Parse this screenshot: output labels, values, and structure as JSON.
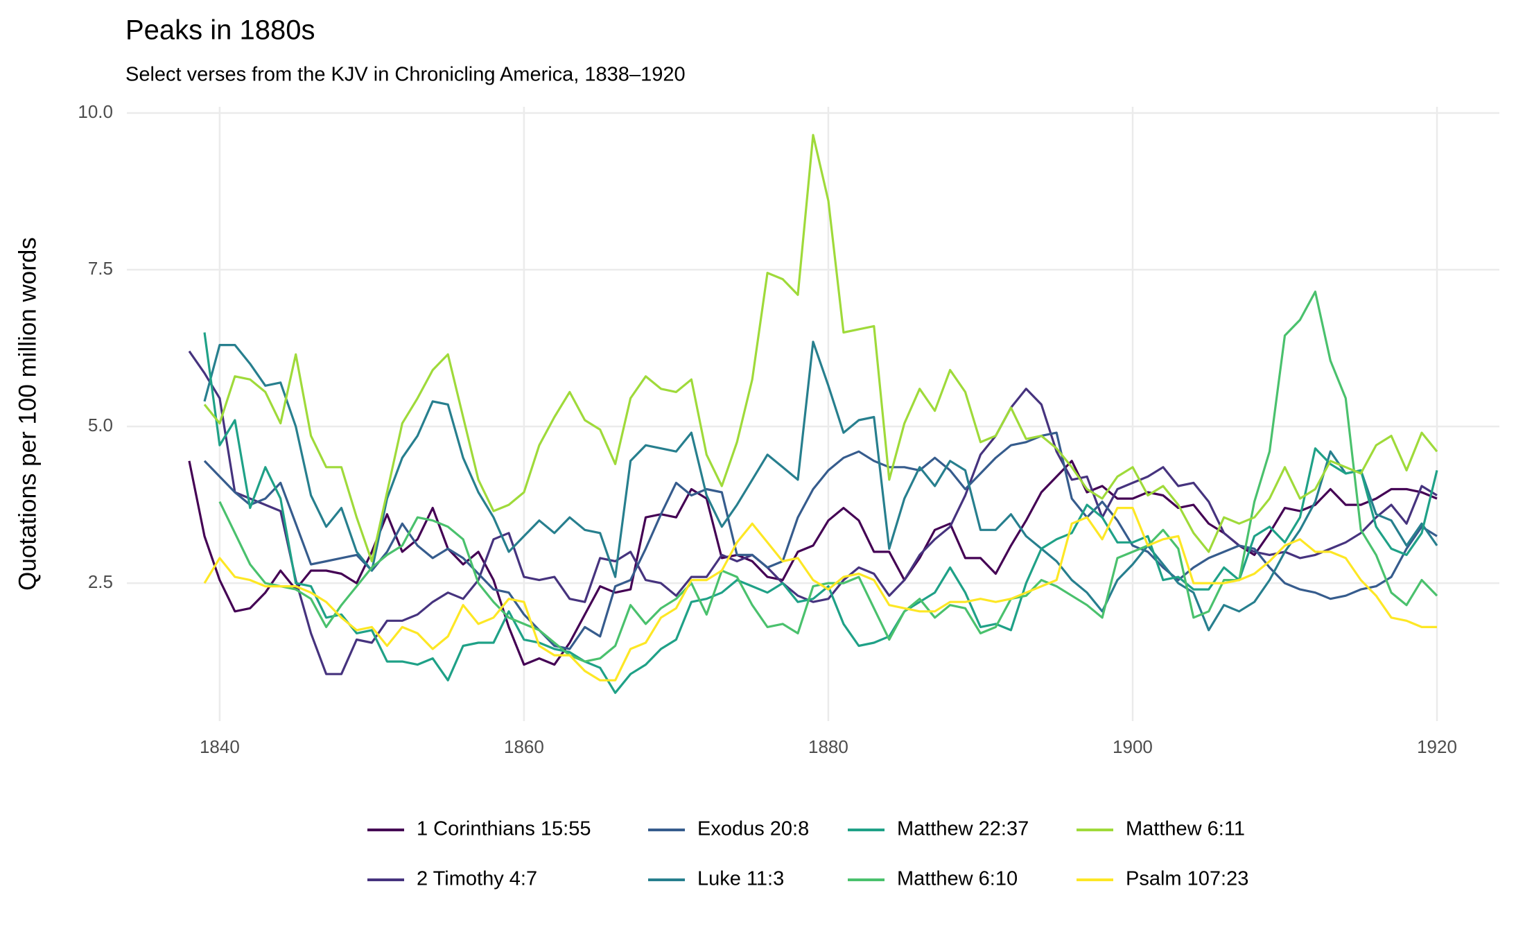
{
  "chart_data": {
    "type": "line",
    "title": "Peaks in 1880s",
    "subtitle": "Select verses from the KJV in Chronicling America, 1838–1920",
    "y_label": "Quotations per 100 million words",
    "x": [
      1838,
      1839,
      1840,
      1841,
      1842,
      1843,
      1844,
      1845,
      1846,
      1847,
      1848,
      1849,
      1850,
      1851,
      1852,
      1853,
      1854,
      1855,
      1856,
      1857,
      1858,
      1859,
      1860,
      1861,
      1862,
      1863,
      1864,
      1865,
      1866,
      1867,
      1868,
      1869,
      1870,
      1871,
      1872,
      1873,
      1874,
      1875,
      1876,
      1877,
      1878,
      1879,
      1880,
      1881,
      1882,
      1883,
      1884,
      1885,
      1886,
      1887,
      1888,
      1889,
      1890,
      1891,
      1892,
      1893,
      1894,
      1895,
      1896,
      1897,
      1898,
      1899,
      1900,
      1901,
      1902,
      1903,
      1904,
      1905,
      1906,
      1907,
      1908,
      1909,
      1910,
      1911,
      1912,
      1913,
      1914,
      1915,
      1916,
      1917,
      1918,
      1919,
      1920
    ],
    "xlim": [
      1833.9,
      1924.1
    ],
    "xticks": [
      1840,
      1860,
      1880,
      1900,
      1920
    ],
    "ylim": [
      0.3,
      10.1
    ],
    "yticks": [
      {
        "value": 2.5,
        "label": "2.5"
      },
      {
        "value": 5,
        "label": "5.0"
      },
      {
        "value": 7.5,
        "label": "7.5"
      },
      {
        "value": 10,
        "label": "10.0"
      }
    ],
    "grid": true,
    "legend": "bottom",
    "series": [
      {
        "name": "1 Corinthians 15:55",
        "color": "#440154",
        "values": [
          4.45,
          3.25,
          2.55,
          2.05,
          2.1,
          2.35,
          2.7,
          2.4,
          2.7,
          2.7,
          2.65,
          2.5,
          3.0,
          3.6,
          3.0,
          3.2,
          3.7,
          3.05,
          2.8,
          3.0,
          2.55,
          1.8,
          1.2,
          1.3,
          1.2,
          1.55,
          2.0,
          2.45,
          2.35,
          2.4,
          3.55,
          3.6,
          3.55,
          4.0,
          3.85,
          2.9,
          2.95,
          2.85,
          2.6,
          2.55,
          3.0,
          3.1,
          3.5,
          3.7,
          3.5,
          3.0,
          3.0,
          2.55,
          2.9,
          3.35,
          3.45,
          2.9,
          2.9,
          2.65,
          3.1,
          3.5,
          3.95,
          4.2,
          4.45,
          3.95,
          4.05,
          3.85,
          3.85,
          3.95,
          3.9,
          3.7,
          3.75,
          3.45,
          3.3,
          3.1,
          2.95,
          3.3,
          3.7,
          3.65,
          3.75,
          4.0,
          3.75,
          3.75,
          3.85,
          4.0,
          4.0,
          3.95,
          3.85
        ]
      },
      {
        "name": "2 Timothy 4:7",
        "color": "#46337E",
        "values": [
          6.2,
          5.85,
          5.45,
          3.95,
          3.85,
          3.75,
          3.65,
          2.55,
          1.7,
          1.05,
          1.05,
          1.6,
          1.55,
          1.9,
          1.9,
          2.0,
          2.2,
          2.35,
          2.25,
          2.55,
          3.2,
          3.3,
          2.6,
          2.55,
          2.6,
          2.25,
          2.2,
          2.9,
          2.85,
          3.0,
          2.55,
          2.5,
          2.3,
          2.6,
          2.6,
          2.95,
          2.85,
          2.95,
          2.75,
          2.5,
          2.3,
          2.2,
          2.25,
          2.55,
          2.75,
          2.65,
          2.3,
          2.55,
          2.95,
          3.2,
          3.4,
          3.9,
          4.55,
          4.85,
          5.3,
          5.6,
          5.35,
          4.6,
          4.15,
          4.2,
          3.55,
          4.0,
          4.1,
          4.2,
          4.35,
          4.05,
          4.1,
          3.8,
          3.3,
          3.1,
          3.0,
          2.95,
          3.0,
          2.9,
          2.95,
          3.05,
          3.15,
          3.3,
          3.55,
          3.75,
          3.45,
          4.05,
          3.9
        ]
      },
      {
        "name": "Exodus 20:8",
        "color": "#365C8D",
        "values": [
          null,
          4.45,
          4.2,
          3.95,
          3.75,
          3.85,
          4.1,
          3.45,
          2.8,
          2.85,
          2.9,
          2.95,
          2.7,
          3.0,
          3.45,
          3.1,
          2.9,
          3.05,
          2.9,
          2.65,
          2.4,
          2.35,
          2.0,
          1.75,
          1.5,
          1.45,
          1.8,
          1.65,
          2.45,
          2.55,
          3.05,
          3.6,
          4.1,
          3.9,
          4.0,
          3.95,
          2.95,
          2.95,
          2.75,
          2.85,
          3.55,
          4.0,
          4.3,
          4.5,
          4.6,
          4.45,
          4.35,
          4.35,
          4.3,
          4.5,
          4.3,
          4.0,
          4.25,
          4.5,
          4.7,
          4.75,
          4.85,
          4.9,
          3.85,
          3.55,
          3.8,
          3.5,
          3.1,
          3.0,
          2.75,
          2.55,
          2.75,
          2.9,
          3.0,
          3.1,
          3.05,
          2.75,
          2.5,
          2.4,
          2.35,
          2.25,
          2.3,
          2.4,
          2.45,
          2.6,
          3.05,
          3.4,
          3.25
        ]
      },
      {
        "name": "Luke 11:3",
        "color": "#277F8E",
        "values": [
          null,
          5.4,
          6.3,
          6.3,
          6.0,
          5.65,
          5.7,
          5.0,
          3.9,
          3.4,
          3.7,
          3.0,
          2.7,
          3.85,
          4.5,
          4.85,
          5.4,
          5.35,
          4.5,
          3.95,
          3.55,
          3.0,
          3.25,
          3.5,
          3.3,
          3.55,
          3.35,
          3.3,
          2.6,
          4.45,
          4.7,
          4.65,
          4.6,
          4.9,
          3.9,
          3.4,
          3.75,
          4.15,
          4.55,
          4.35,
          4.15,
          6.35,
          5.65,
          4.9,
          5.1,
          5.15,
          3.05,
          3.85,
          4.35,
          4.05,
          4.45,
          4.3,
          3.35,
          3.35,
          3.6,
          3.25,
          3.05,
          2.85,
          2.55,
          2.35,
          2.05,
          2.55,
          2.8,
          3.1,
          2.8,
          2.5,
          2.35,
          1.75,
          2.15,
          2.05,
          2.2,
          2.55,
          3.0,
          3.35,
          3.8,
          4.6,
          4.25,
          4.3,
          3.6,
          3.5,
          3.1,
          3.45,
          3.1
        ]
      },
      {
        "name": "Matthew 22:37",
        "color": "#1FA187",
        "values": [
          null,
          6.5,
          4.7,
          5.1,
          3.7,
          4.35,
          3.85,
          2.5,
          2.45,
          1.95,
          2.0,
          1.7,
          1.75,
          1.25,
          1.25,
          1.2,
          1.3,
          0.95,
          1.5,
          1.55,
          1.55,
          2.05,
          1.6,
          1.55,
          1.45,
          1.4,
          1.25,
          1.15,
          0.75,
          1.05,
          1.2,
          1.45,
          1.6,
          2.2,
          2.25,
          2.35,
          2.55,
          2.45,
          2.35,
          2.5,
          2.2,
          2.25,
          2.45,
          1.85,
          1.5,
          1.55,
          1.65,
          2.05,
          2.2,
          2.35,
          2.75,
          2.35,
          1.8,
          1.85,
          1.75,
          2.5,
          3.05,
          3.2,
          3.3,
          3.75,
          3.55,
          3.15,
          3.15,
          3.25,
          2.55,
          2.6,
          2.4,
          2.4,
          2.75,
          2.55,
          3.25,
          3.4,
          3.15,
          3.55,
          4.65,
          4.4,
          4.25,
          4.3,
          3.4,
          3.05,
          2.95,
          3.3,
          4.3
        ]
      },
      {
        "name": "Matthew 6:10",
        "color": "#4AC16D",
        "values": [
          null,
          null,
          3.8,
          3.3,
          2.8,
          2.5,
          2.45,
          2.4,
          2.25,
          1.8,
          2.15,
          2.45,
          2.75,
          2.95,
          3.1,
          3.55,
          3.5,
          3.4,
          3.2,
          2.5,
          2.2,
          1.95,
          1.85,
          1.75,
          1.55,
          1.35,
          1.25,
          1.3,
          1.5,
          2.15,
          1.85,
          2.1,
          2.25,
          2.5,
          2.0,
          2.7,
          2.6,
          2.15,
          1.8,
          1.85,
          1.7,
          2.45,
          2.5,
          2.5,
          2.6,
          2.1,
          1.6,
          2.05,
          2.25,
          1.95,
          2.15,
          2.1,
          1.7,
          1.8,
          2.25,
          2.3,
          2.55,
          2.45,
          2.3,
          2.15,
          1.95,
          2.9,
          3.0,
          3.1,
          3.35,
          3.05,
          1.95,
          2.05,
          2.55,
          2.55,
          3.8,
          4.6,
          6.45,
          6.7,
          7.15,
          6.05,
          5.45,
          3.35,
          2.95,
          2.35,
          2.15,
          2.55,
          2.3
        ]
      },
      {
        "name": "Matthew 6:11",
        "color": "#9FDA3A",
        "values": [
          null,
          5.35,
          5.05,
          5.8,
          5.75,
          5.55,
          5.05,
          6.15,
          4.85,
          4.35,
          4.35,
          3.55,
          2.85,
          3.95,
          5.05,
          5.45,
          5.9,
          6.15,
          5.15,
          4.15,
          3.65,
          3.75,
          3.95,
          4.7,
          5.15,
          5.55,
          5.1,
          4.95,
          4.4,
          5.45,
          5.8,
          5.6,
          5.55,
          5.75,
          4.55,
          4.05,
          4.75,
          5.75,
          7.45,
          7.35,
          7.1,
          9.65,
          8.6,
          6.5,
          6.55,
          6.6,
          4.15,
          5.05,
          5.6,
          5.25,
          5.9,
          5.55,
          4.75,
          4.85,
          5.3,
          4.8,
          4.85,
          4.65,
          4.35,
          4.0,
          3.85,
          4.2,
          4.35,
          3.9,
          4.05,
          3.75,
          3.3,
          3.0,
          3.55,
          3.45,
          3.55,
          3.85,
          4.35,
          3.85,
          4.0,
          4.45,
          4.35,
          4.25,
          4.7,
          4.85,
          4.3,
          4.9,
          4.6
        ]
      },
      {
        "name": "Psalm 107:23",
        "color": "#FDE725",
        "values": [
          null,
          2.5,
          2.9,
          2.6,
          2.55,
          2.45,
          2.45,
          2.45,
          2.35,
          2.2,
          1.95,
          1.75,
          1.8,
          1.5,
          1.8,
          1.7,
          1.45,
          1.65,
          2.15,
          1.85,
          1.95,
          2.25,
          2.2,
          1.5,
          1.35,
          1.35,
          1.1,
          0.95,
          0.95,
          1.45,
          1.55,
          1.95,
          2.1,
          2.55,
          2.55,
          2.7,
          3.15,
          3.45,
          3.15,
          2.85,
          2.9,
          2.55,
          2.4,
          2.6,
          2.65,
          2.55,
          2.15,
          2.1,
          2.05,
          2.05,
          2.2,
          2.2,
          2.25,
          2.2,
          2.25,
          2.35,
          2.45,
          2.55,
          3.45,
          3.55,
          3.2,
          3.7,
          3.7,
          3.1,
          3.2,
          3.25,
          2.5,
          2.5,
          2.5,
          2.55,
          2.65,
          2.85,
          3.1,
          3.2,
          3.0,
          3.0,
          2.9,
          2.55,
          2.3,
          1.95,
          1.9,
          1.8,
          1.8
        ]
      }
    ]
  }
}
